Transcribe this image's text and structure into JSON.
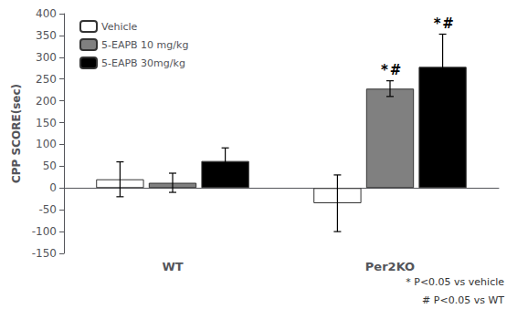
{
  "chart_data": {
    "type": "bar",
    "categories": [
      "WT",
      "Per2KO"
    ],
    "series": [
      {
        "name": "Vehicle",
        "color": "white",
        "values": [
          20,
          -35
        ],
        "errors": [
          40,
          65
        ]
      },
      {
        "name": "5-EAPB 10 mg/kg",
        "color": "#808080",
        "values": [
          12,
          228
        ],
        "errors": [
          22,
          18
        ]
      },
      {
        "name": "5-EAPB 30mg/kg",
        "color": "black",
        "values": [
          62,
          278
        ],
        "errors": [
          30,
          75
        ]
      }
    ],
    "ylabel": "CPP SCORE(sec)",
    "ylim": [
      -150,
      400
    ],
    "yticks": [
      -150,
      -100,
      -50,
      0,
      50,
      100,
      150,
      200,
      250,
      300,
      350,
      400
    ],
    "grid": false,
    "legend": "upper left",
    "annotations": [
      {
        "series": "5-EAPB 10 mg/kg",
        "category": "Per2KO",
        "text": "*"
      },
      {
        "series": "5-EAPB 10 mg/kg",
        "category": "Per2KO",
        "text": "#"
      },
      {
        "series": "5-EAPB 30mg/kg",
        "category": "Per2KO",
        "text": "*"
      },
      {
        "series": "5-EAPB 30mg/kg",
        "category": "Per2KO",
        "text": "#"
      }
    ],
    "footnotes": [
      "* P<0.05 vs vehicle",
      "# P<0.05 vs WT"
    ]
  }
}
